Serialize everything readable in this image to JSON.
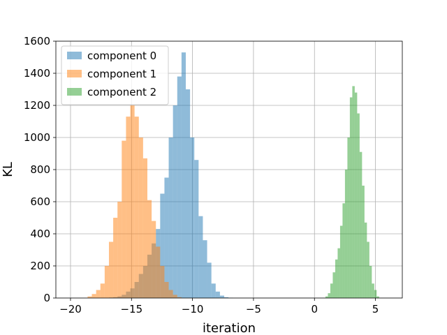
{
  "chart_data": {
    "type": "histogram",
    "title": "",
    "xlabel": "iteration",
    "ylabel": "KL",
    "xlim": [
      -21.2,
      7.2
    ],
    "ylim": [
      0,
      1600
    ],
    "x_ticks": [
      -20,
      -15,
      -10,
      -5,
      0,
      5
    ],
    "x_tick_labels": [
      "−20",
      "−15",
      "−10",
      "−5",
      "0",
      "5"
    ],
    "y_ticks": [
      0,
      200,
      400,
      600,
      800,
      1000,
      1200,
      1400,
      1600
    ],
    "y_tick_labels": [
      "0",
      "200",
      "400",
      "600",
      "800",
      "1000",
      "1200",
      "1400",
      "1600"
    ],
    "grid": true,
    "legend_position": "top-left",
    "series": [
      {
        "name": "component 0",
        "color": "#1f77b4",
        "opacity": 0.5,
        "bin_width": 0.35,
        "bin_start": -16.85,
        "counts": [
          3,
          5,
          10,
          20,
          40,
          60,
          100,
          150,
          200,
          270,
          340,
          430,
          650,
          750,
          1000,
          1200,
          1380,
          1530,
          1300,
          1000,
          860,
          510,
          360,
          220,
          90,
          40,
          15,
          5,
          2
        ]
      },
      {
        "name": "component 1",
        "color": "#ff7f0e",
        "opacity": 0.5,
        "bin_width": 0.35,
        "bin_start": -18.6,
        "counts": [
          10,
          25,
          50,
          90,
          200,
          350,
          500,
          600,
          980,
          1130,
          1200,
          1130,
          1000,
          870,
          610,
          480,
          320,
          200,
          100,
          50,
          20,
          5
        ]
      },
      {
        "name": "component 2",
        "color": "#2ca02c",
        "opacity": 0.5,
        "bin_width": 0.2,
        "bin_start": 0.9,
        "counts": [
          10,
          30,
          90,
          160,
          240,
          310,
          450,
          590,
          800,
          1000,
          1250,
          1320,
          1280,
          1150,
          910,
          700,
          470,
          350,
          200,
          90,
          50,
          10
        ]
      }
    ]
  }
}
